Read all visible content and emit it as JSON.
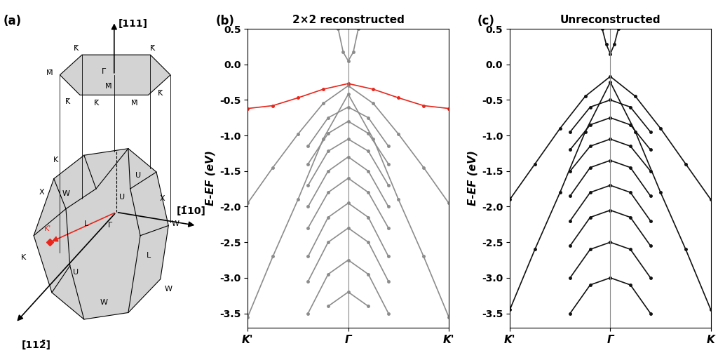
{
  "diagram": {
    "label": "(a)",
    "directions": [
      "[111]",
      "[1̄",
      "10]",
      "[112̄]"
    ],
    "surface_points": [
      "K̄",
      "K̄",
      "Γ̄",
      "M̄",
      "M̄",
      "K̄",
      "K̄",
      "M̄",
      "K̄"
    ],
    "bulk_points": [
      "K",
      "X",
      "W",
      "U",
      "U",
      "X",
      "W",
      "L",
      "K'",
      "Γ",
      "K",
      "U",
      "L",
      "W",
      "W"
    ],
    "highlight": "K'"
  },
  "chart_data": [
    {
      "type": "line",
      "label": "(b)",
      "title": "2×2 reconstructed",
      "ylabel": "E-EF (eV)",
      "xlim": [
        -1,
        1
      ],
      "ylim": [
        -3.7,
        0.5
      ],
      "xticks": [
        {
          "value": -1,
          "label": "K'"
        },
        {
          "value": 0,
          "label": "Γ"
        },
        {
          "value": 1,
          "label": "K'"
        }
      ],
      "yticks": [
        0.5,
        0.0,
        -0.5,
        -1.0,
        -1.5,
        -2.0,
        -2.5,
        -3.0,
        -3.5
      ],
      "marker": "o",
      "series": [
        {
          "color": "#8c8c8c",
          "x": [
            -1,
            -0.75,
            -0.5,
            -0.25,
            0,
            0.25,
            0.5,
            0.75,
            1
          ],
          "values": [
            -1.95,
            -1.45,
            -0.98,
            -0.55,
            -0.3,
            -0.55,
            -0.98,
            -1.45,
            -1.95
          ]
        },
        {
          "color": "#8c8c8c",
          "x": [
            -1,
            -0.75,
            -0.5,
            -0.25,
            0,
            0.25,
            0.5,
            0.75,
            1
          ],
          "values": [
            -3.55,
            -2.7,
            -1.9,
            -1.05,
            -0.42,
            -1.05,
            -1.9,
            -2.7,
            -3.55
          ]
        },
        {
          "color": "#8c8c8c",
          "x": [
            -0.4,
            -0.2,
            0,
            0.2,
            0.4
          ],
          "values": [
            -1.15,
            -0.75,
            -0.6,
            -0.75,
            -1.15
          ]
        },
        {
          "color": "#8c8c8c",
          "x": [
            -0.4,
            -0.2,
            0,
            0.2,
            0.4
          ],
          "values": [
            -1.4,
            -0.97,
            -0.8,
            -0.97,
            -1.4
          ]
        },
        {
          "color": "#8c8c8c",
          "x": [
            -0.4,
            -0.2,
            0,
            0.2,
            0.4
          ],
          "values": [
            -1.7,
            -1.22,
            -1.05,
            -1.22,
            -1.7
          ]
        },
        {
          "color": "#8c8c8c",
          "x": [
            -0.4,
            -0.2,
            0,
            0.2,
            0.4
          ],
          "values": [
            -2.0,
            -1.5,
            -1.3,
            -1.5,
            -2.0
          ]
        },
        {
          "color": "#8c8c8c",
          "x": [
            -0.4,
            -0.2,
            0,
            0.2,
            0.4
          ],
          "values": [
            -2.3,
            -1.8,
            -1.6,
            -1.8,
            -2.3
          ]
        },
        {
          "color": "#8c8c8c",
          "x": [
            -0.4,
            -0.2,
            0,
            0.2,
            0.4
          ],
          "values": [
            -2.7,
            -2.15,
            -1.95,
            -2.15,
            -2.7
          ]
        },
        {
          "color": "#8c8c8c",
          "x": [
            -0.4,
            -0.2,
            0,
            0.2,
            0.4
          ],
          "values": [
            -3.05,
            -2.5,
            -2.3,
            -2.5,
            -3.05
          ]
        },
        {
          "color": "#8c8c8c",
          "x": [
            -0.4,
            -0.2,
            0,
            0.2,
            0.4
          ],
          "values": [
            -3.5,
            -2.95,
            -2.75,
            -2.95,
            -3.5
          ]
        },
        {
          "color": "#8c8c8c",
          "x": [
            -0.2,
            0,
            0.2
          ],
          "values": [
            -3.4,
            -3.2,
            -3.4
          ]
        },
        {
          "color": "#8c8c8c",
          "x": [
            -0.1,
            -0.05,
            0,
            0.05,
            0.1
          ],
          "values": [
            0.5,
            0.17,
            0.05,
            0.17,
            0.5
          ]
        },
        {
          "color": "#e8261b",
          "x": [
            -1,
            -0.75,
            -0.5,
            -0.25,
            0,
            0.25,
            0.5,
            0.75,
            1
          ],
          "values": [
            -0.62,
            -0.58,
            -0.47,
            -0.35,
            -0.27,
            -0.35,
            -0.47,
            -0.58,
            -0.62
          ]
        }
      ]
    },
    {
      "type": "line",
      "label": "(c)",
      "title": "Unreconstructed",
      "ylabel": "E-EF (eV)",
      "xlim": [
        -1,
        1
      ],
      "ylim": [
        -3.7,
        0.5
      ],
      "xticks": [
        {
          "value": -1,
          "label": "K'"
        },
        {
          "value": 0,
          "label": "Γ"
        },
        {
          "value": 1,
          "label": "K"
        }
      ],
      "yticks": [
        0.5,
        0.0,
        -0.5,
        -1.0,
        -1.5,
        -2.0,
        -2.5,
        -3.0,
        -3.5
      ],
      "marker": "o",
      "series": [
        {
          "color": "#111111",
          "x": [
            -1,
            -0.75,
            -0.5,
            -0.25,
            0,
            0.25,
            0.5,
            0.75,
            1
          ],
          "values": [
            -1.9,
            -1.4,
            -0.9,
            -0.45,
            -0.17,
            -0.45,
            -0.9,
            -1.4,
            -1.9
          ]
        },
        {
          "color": "#111111",
          "x": [
            -1,
            -0.75,
            -0.5,
            -0.25,
            0,
            0.25,
            0.5,
            0.75,
            1
          ],
          "values": [
            -3.45,
            -2.6,
            -1.8,
            -0.95,
            -0.25,
            -0.95,
            -1.8,
            -2.6,
            -3.45
          ]
        },
        {
          "color": "#111111",
          "x": [
            -0.4,
            -0.2,
            0,
            0.2,
            0.4
          ],
          "values": [
            -0.95,
            -0.6,
            -0.5,
            -0.6,
            -0.95
          ]
        },
        {
          "color": "#111111",
          "x": [
            -0.4,
            -0.2,
            0,
            0.2,
            0.4
          ],
          "values": [
            -1.2,
            -0.85,
            -0.75,
            -0.85,
            -1.2
          ]
        },
        {
          "color": "#111111",
          "x": [
            -0.4,
            -0.2,
            0,
            0.2,
            0.4
          ],
          "values": [
            -1.5,
            -1.15,
            -1.05,
            -1.15,
            -1.5
          ]
        },
        {
          "color": "#111111",
          "x": [
            -0.4,
            -0.2,
            0,
            0.2,
            0.4
          ],
          "values": [
            -1.85,
            -1.45,
            -1.35,
            -1.45,
            -1.85
          ]
        },
        {
          "color": "#111111",
          "x": [
            -0.4,
            -0.2,
            0,
            0.2,
            0.4
          ],
          "values": [
            -2.2,
            -1.8,
            -1.7,
            -1.8,
            -2.2
          ]
        },
        {
          "color": "#111111",
          "x": [
            -0.4,
            -0.2,
            0,
            0.2,
            0.4
          ],
          "values": [
            -2.55,
            -2.15,
            -2.05,
            -2.15,
            -2.55
          ]
        },
        {
          "color": "#111111",
          "x": [
            -0.4,
            -0.2,
            0,
            0.2,
            0.4
          ],
          "values": [
            -3.0,
            -2.6,
            -2.5,
            -2.6,
            -3.0
          ]
        },
        {
          "color": "#111111",
          "x": [
            -0.4,
            -0.2,
            0,
            0.2,
            0.4
          ],
          "values": [
            -3.5,
            -3.1,
            -3.0,
            -3.1,
            -3.5
          ]
        },
        {
          "color": "#111111",
          "x": [
            -0.08,
            -0.04,
            0,
            0.04,
            0.08
          ],
          "values": [
            0.5,
            0.28,
            0.15,
            0.28,
            0.5
          ]
        }
      ]
    }
  ]
}
